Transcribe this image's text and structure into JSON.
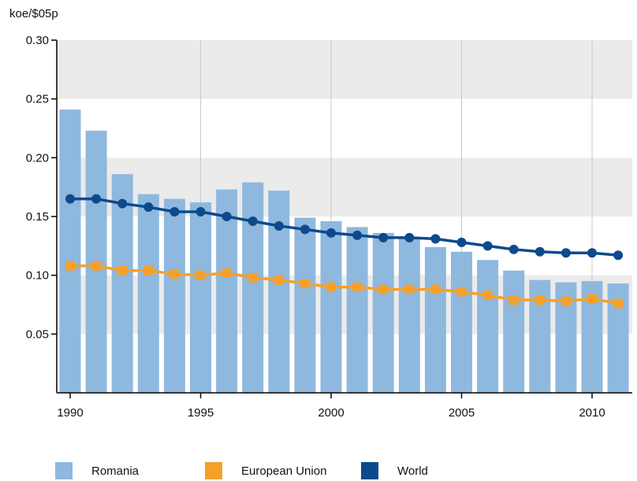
{
  "chart_data": {
    "type": "bar",
    "unit_label": "koe/$05p",
    "x": [
      1990,
      1991,
      1992,
      1993,
      1994,
      1995,
      1996,
      1997,
      1998,
      1999,
      2000,
      2001,
      2002,
      2003,
      2004,
      2005,
      2006,
      2007,
      2008,
      2009,
      2010,
      2011
    ],
    "x_tick_labels": [
      "1990",
      "1995",
      "2000",
      "2005",
      "2010"
    ],
    "y_tick_labels": [
      "0.30",
      "0.25",
      "0.20",
      "0.15",
      "0.10",
      "0.05"
    ],
    "ylim": [
      0,
      0.3
    ],
    "grid": "alternating horizontal bands and vertical lines at tick years",
    "legend_position": "bottom",
    "series": [
      {
        "name": "Romania",
        "type": "bar",
        "color": "#8fb8de",
        "values": [
          0.241,
          0.223,
          0.186,
          0.169,
          0.165,
          0.162,
          0.173,
          0.179,
          0.172,
          0.149,
          0.146,
          0.141,
          0.136,
          0.131,
          0.124,
          0.12,
          0.113,
          0.104,
          0.096,
          0.094,
          0.095,
          0.093
        ]
      },
      {
        "name": "European Union",
        "type": "line",
        "marker": "square",
        "color": "#f5a02a",
        "values": [
          0.108,
          0.108,
          0.104,
          0.104,
          0.101,
          0.1,
          0.102,
          0.098,
          0.096,
          0.093,
          0.09,
          0.09,
          0.088,
          0.088,
          0.088,
          0.086,
          0.083,
          0.079,
          0.079,
          0.078,
          0.08,
          0.076
        ]
      },
      {
        "name": "World",
        "type": "line",
        "marker": "circle",
        "color": "#0c4a8c",
        "values": [
          0.165,
          0.165,
          0.161,
          0.158,
          0.154,
          0.154,
          0.15,
          0.146,
          0.142,
          0.139,
          0.136,
          0.134,
          0.132,
          0.132,
          0.131,
          0.128,
          0.125,
          0.122,
          0.12,
          0.119,
          0.119,
          0.117
        ]
      }
    ]
  }
}
